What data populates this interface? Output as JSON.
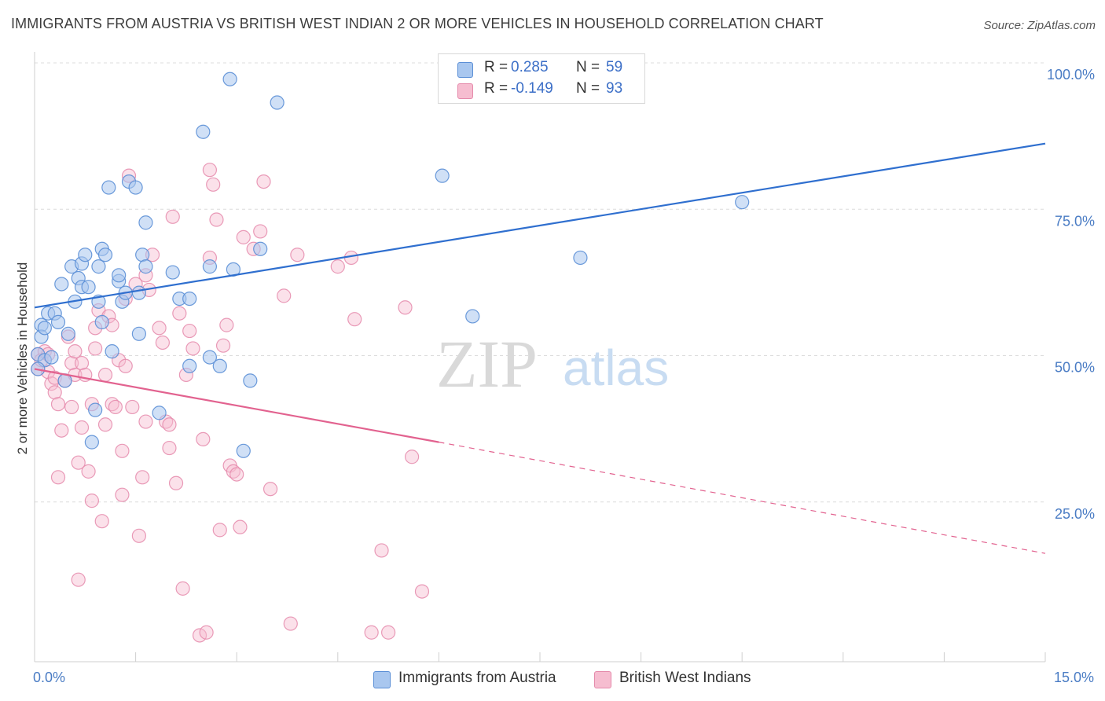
{
  "header": {
    "title": "IMMIGRANTS FROM AUSTRIA VS BRITISH WEST INDIAN 2 OR MORE VEHICLES IN HOUSEHOLD CORRELATION CHART",
    "source": "Source: ZipAtlas.com"
  },
  "watermark": {
    "zip": "ZIP",
    "atlas": "atlas"
  },
  "legend": {
    "rows": [
      {
        "r_key": "R =",
        "r_value": "0.285",
        "n_key": "N =",
        "n_value": "59"
      },
      {
        "r_key": "R =",
        "r_value": "-0.149",
        "n_key": "N =",
        "n_value": "93"
      }
    ]
  },
  "colors": {
    "austria_fill": "#a9c7ef",
    "austria_stroke": "#5b8fd6",
    "austria_line": "#2f6fcf",
    "bwi_fill": "#f6bdd0",
    "bwi_stroke": "#e58aab",
    "bwi_line": "#e2628f",
    "grid": "#dcdcdc",
    "tick_text": "#4a7cc4"
  },
  "chart_data": {
    "type": "scatter",
    "title": "IMMIGRANTS FROM AUSTRIA VS BRITISH WEST INDIAN 2 OR MORE VEHICLES IN HOUSEHOLD CORRELATION CHART",
    "xlabel": "",
    "ylabel": "2 or more Vehicles in Household",
    "xlim": [
      0,
      15
    ],
    "ylim": [
      0,
      100
    ],
    "x_unit": "%",
    "y_unit": "%",
    "x_tick_labels": [
      "0.0%",
      "15.0%"
    ],
    "y_tick_labels": [
      "100.0%",
      "75.0%",
      "50.0%",
      "25.0%"
    ],
    "y_ticks": [
      100,
      75,
      50,
      25
    ],
    "grid": "horizontal dashed",
    "legend_position": "top-center",
    "series": [
      {
        "name": "Immigrants from Austria",
        "R": 0.285,
        "N": 59,
        "trend": {
          "x": [
            0,
            15
          ],
          "y": [
            60.5,
            88.5
          ]
        },
        "points": [
          [
            0.05,
            52.5
          ],
          [
            0.1,
            57.5
          ],
          [
            0.1,
            55.5
          ],
          [
            0.15,
            51.5
          ],
          [
            0.2,
            59.5
          ],
          [
            0.25,
            52
          ],
          [
            0.3,
            59.5
          ],
          [
            0.35,
            58
          ],
          [
            0.4,
            64.5
          ],
          [
            0.45,
            48
          ],
          [
            0.5,
            56
          ],
          [
            0.55,
            67.5
          ],
          [
            0.6,
            61.5
          ],
          [
            0.65,
            65.5
          ],
          [
            0.7,
            64
          ],
          [
            0.7,
            68
          ],
          [
            0.75,
            69.5
          ],
          [
            0.8,
            64
          ],
          [
            0.85,
            37.5
          ],
          [
            0.9,
            43
          ],
          [
            0.95,
            61.5
          ],
          [
            0.95,
            67.5
          ],
          [
            1.0,
            70.5
          ],
          [
            1.0,
            58
          ],
          [
            1.05,
            69.5
          ],
          [
            1.1,
            81
          ],
          [
            1.15,
            53
          ],
          [
            1.25,
            65
          ],
          [
            1.25,
            66
          ],
          [
            1.3,
            61.5
          ],
          [
            1.35,
            63
          ],
          [
            1.4,
            82
          ],
          [
            1.5,
            81
          ],
          [
            1.55,
            63
          ],
          [
            1.55,
            56
          ],
          [
            1.6,
            69.5
          ],
          [
            1.65,
            67.5
          ],
          [
            1.65,
            75
          ],
          [
            1.85,
            42.5
          ],
          [
            2.05,
            66.5
          ],
          [
            2.15,
            62
          ],
          [
            2.3,
            62
          ],
          [
            2.3,
            50.5
          ],
          [
            2.5,
            90.5
          ],
          [
            2.6,
            67.5
          ],
          [
            2.6,
            52
          ],
          [
            2.75,
            50.5
          ],
          [
            2.9,
            99.5
          ],
          [
            2.95,
            67
          ],
          [
            3.1,
            36
          ],
          [
            3.2,
            48
          ],
          [
            3.35,
            70.5
          ],
          [
            3.6,
            95.5
          ],
          [
            6.05,
            83
          ],
          [
            6.5,
            59
          ],
          [
            8.1,
            69
          ],
          [
            10.5,
            78.5
          ],
          [
            0.05,
            50
          ],
          [
            0.15,
            57
          ]
        ]
      },
      {
        "name": "British West Indians",
        "R": -0.149,
        "N": 93,
        "trend": {
          "x": [
            0,
            6
          ],
          "y": [
            50,
            37.5
          ]
        },
        "trend_dashed": {
          "x": [
            6,
            15
          ],
          "y": [
            37.5,
            18.5
          ]
        },
        "points": [
          [
            0.05,
            50
          ],
          [
            0.05,
            52.5
          ],
          [
            0.1,
            51.5
          ],
          [
            0.15,
            53
          ],
          [
            0.2,
            49.5
          ],
          [
            0.25,
            47.5
          ],
          [
            0.3,
            48.5
          ],
          [
            0.3,
            46
          ],
          [
            0.35,
            44
          ],
          [
            0.35,
            31.5
          ],
          [
            0.4,
            39.5
          ],
          [
            0.45,
            48
          ],
          [
            0.5,
            55.5
          ],
          [
            0.55,
            51
          ],
          [
            0.55,
            43.5
          ],
          [
            0.6,
            53
          ],
          [
            0.6,
            49
          ],
          [
            0.65,
            14
          ],
          [
            0.65,
            34
          ],
          [
            0.7,
            51
          ],
          [
            0.7,
            40
          ],
          [
            0.75,
            49
          ],
          [
            0.8,
            32.5
          ],
          [
            0.85,
            27.5
          ],
          [
            0.85,
            44
          ],
          [
            0.9,
            53.5
          ],
          [
            0.9,
            57
          ],
          [
            0.95,
            60
          ],
          [
            1.0,
            24
          ],
          [
            1.05,
            40.5
          ],
          [
            1.05,
            49
          ],
          [
            1.1,
            59
          ],
          [
            1.15,
            57.5
          ],
          [
            1.15,
            44
          ],
          [
            1.2,
            43.5
          ],
          [
            1.25,
            51.5
          ],
          [
            1.3,
            28.5
          ],
          [
            1.3,
            36
          ],
          [
            1.35,
            50.5
          ],
          [
            1.35,
            62
          ],
          [
            1.4,
            83
          ],
          [
            1.45,
            43.5
          ],
          [
            1.5,
            64.5
          ],
          [
            1.55,
            21.5
          ],
          [
            1.6,
            31.5
          ],
          [
            1.65,
            41
          ],
          [
            1.65,
            66
          ],
          [
            1.7,
            63.5
          ],
          [
            1.75,
            69.5
          ],
          [
            1.85,
            57
          ],
          [
            1.9,
            54.5
          ],
          [
            1.95,
            41
          ],
          [
            2.0,
            40.5
          ],
          [
            2.0,
            36.5
          ],
          [
            2.05,
            76
          ],
          [
            2.1,
            30.5
          ],
          [
            2.15,
            59.5
          ],
          [
            2.2,
            12.5
          ],
          [
            2.25,
            49
          ],
          [
            2.3,
            56.5
          ],
          [
            2.35,
            53.5
          ],
          [
            2.45,
            4.5
          ],
          [
            2.5,
            38
          ],
          [
            2.55,
            5
          ],
          [
            2.6,
            69
          ],
          [
            2.6,
            84
          ],
          [
            2.65,
            81.5
          ],
          [
            2.7,
            75.5
          ],
          [
            2.75,
            22.5
          ],
          [
            2.8,
            54
          ],
          [
            2.85,
            57.5
          ],
          [
            2.9,
            33.5
          ],
          [
            2.95,
            32.5
          ],
          [
            3.0,
            32
          ],
          [
            3.05,
            23
          ],
          [
            3.1,
            72.5
          ],
          [
            3.25,
            70.5
          ],
          [
            3.35,
            73.5
          ],
          [
            3.4,
            82
          ],
          [
            3.5,
            29.5
          ],
          [
            3.7,
            62.5
          ],
          [
            3.8,
            6.5
          ],
          [
            3.9,
            69.5
          ],
          [
            4.5,
            67.5
          ],
          [
            4.7,
            69
          ],
          [
            4.75,
            58.5
          ],
          [
            5.0,
            5
          ],
          [
            5.15,
            19
          ],
          [
            5.25,
            5
          ],
          [
            5.5,
            60.5
          ],
          [
            5.6,
            35
          ],
          [
            5.75,
            12
          ],
          [
            0.2,
            52.5
          ]
        ]
      }
    ]
  },
  "bottom_legend": [
    "Immigrants from Austria",
    "British West Indians"
  ]
}
